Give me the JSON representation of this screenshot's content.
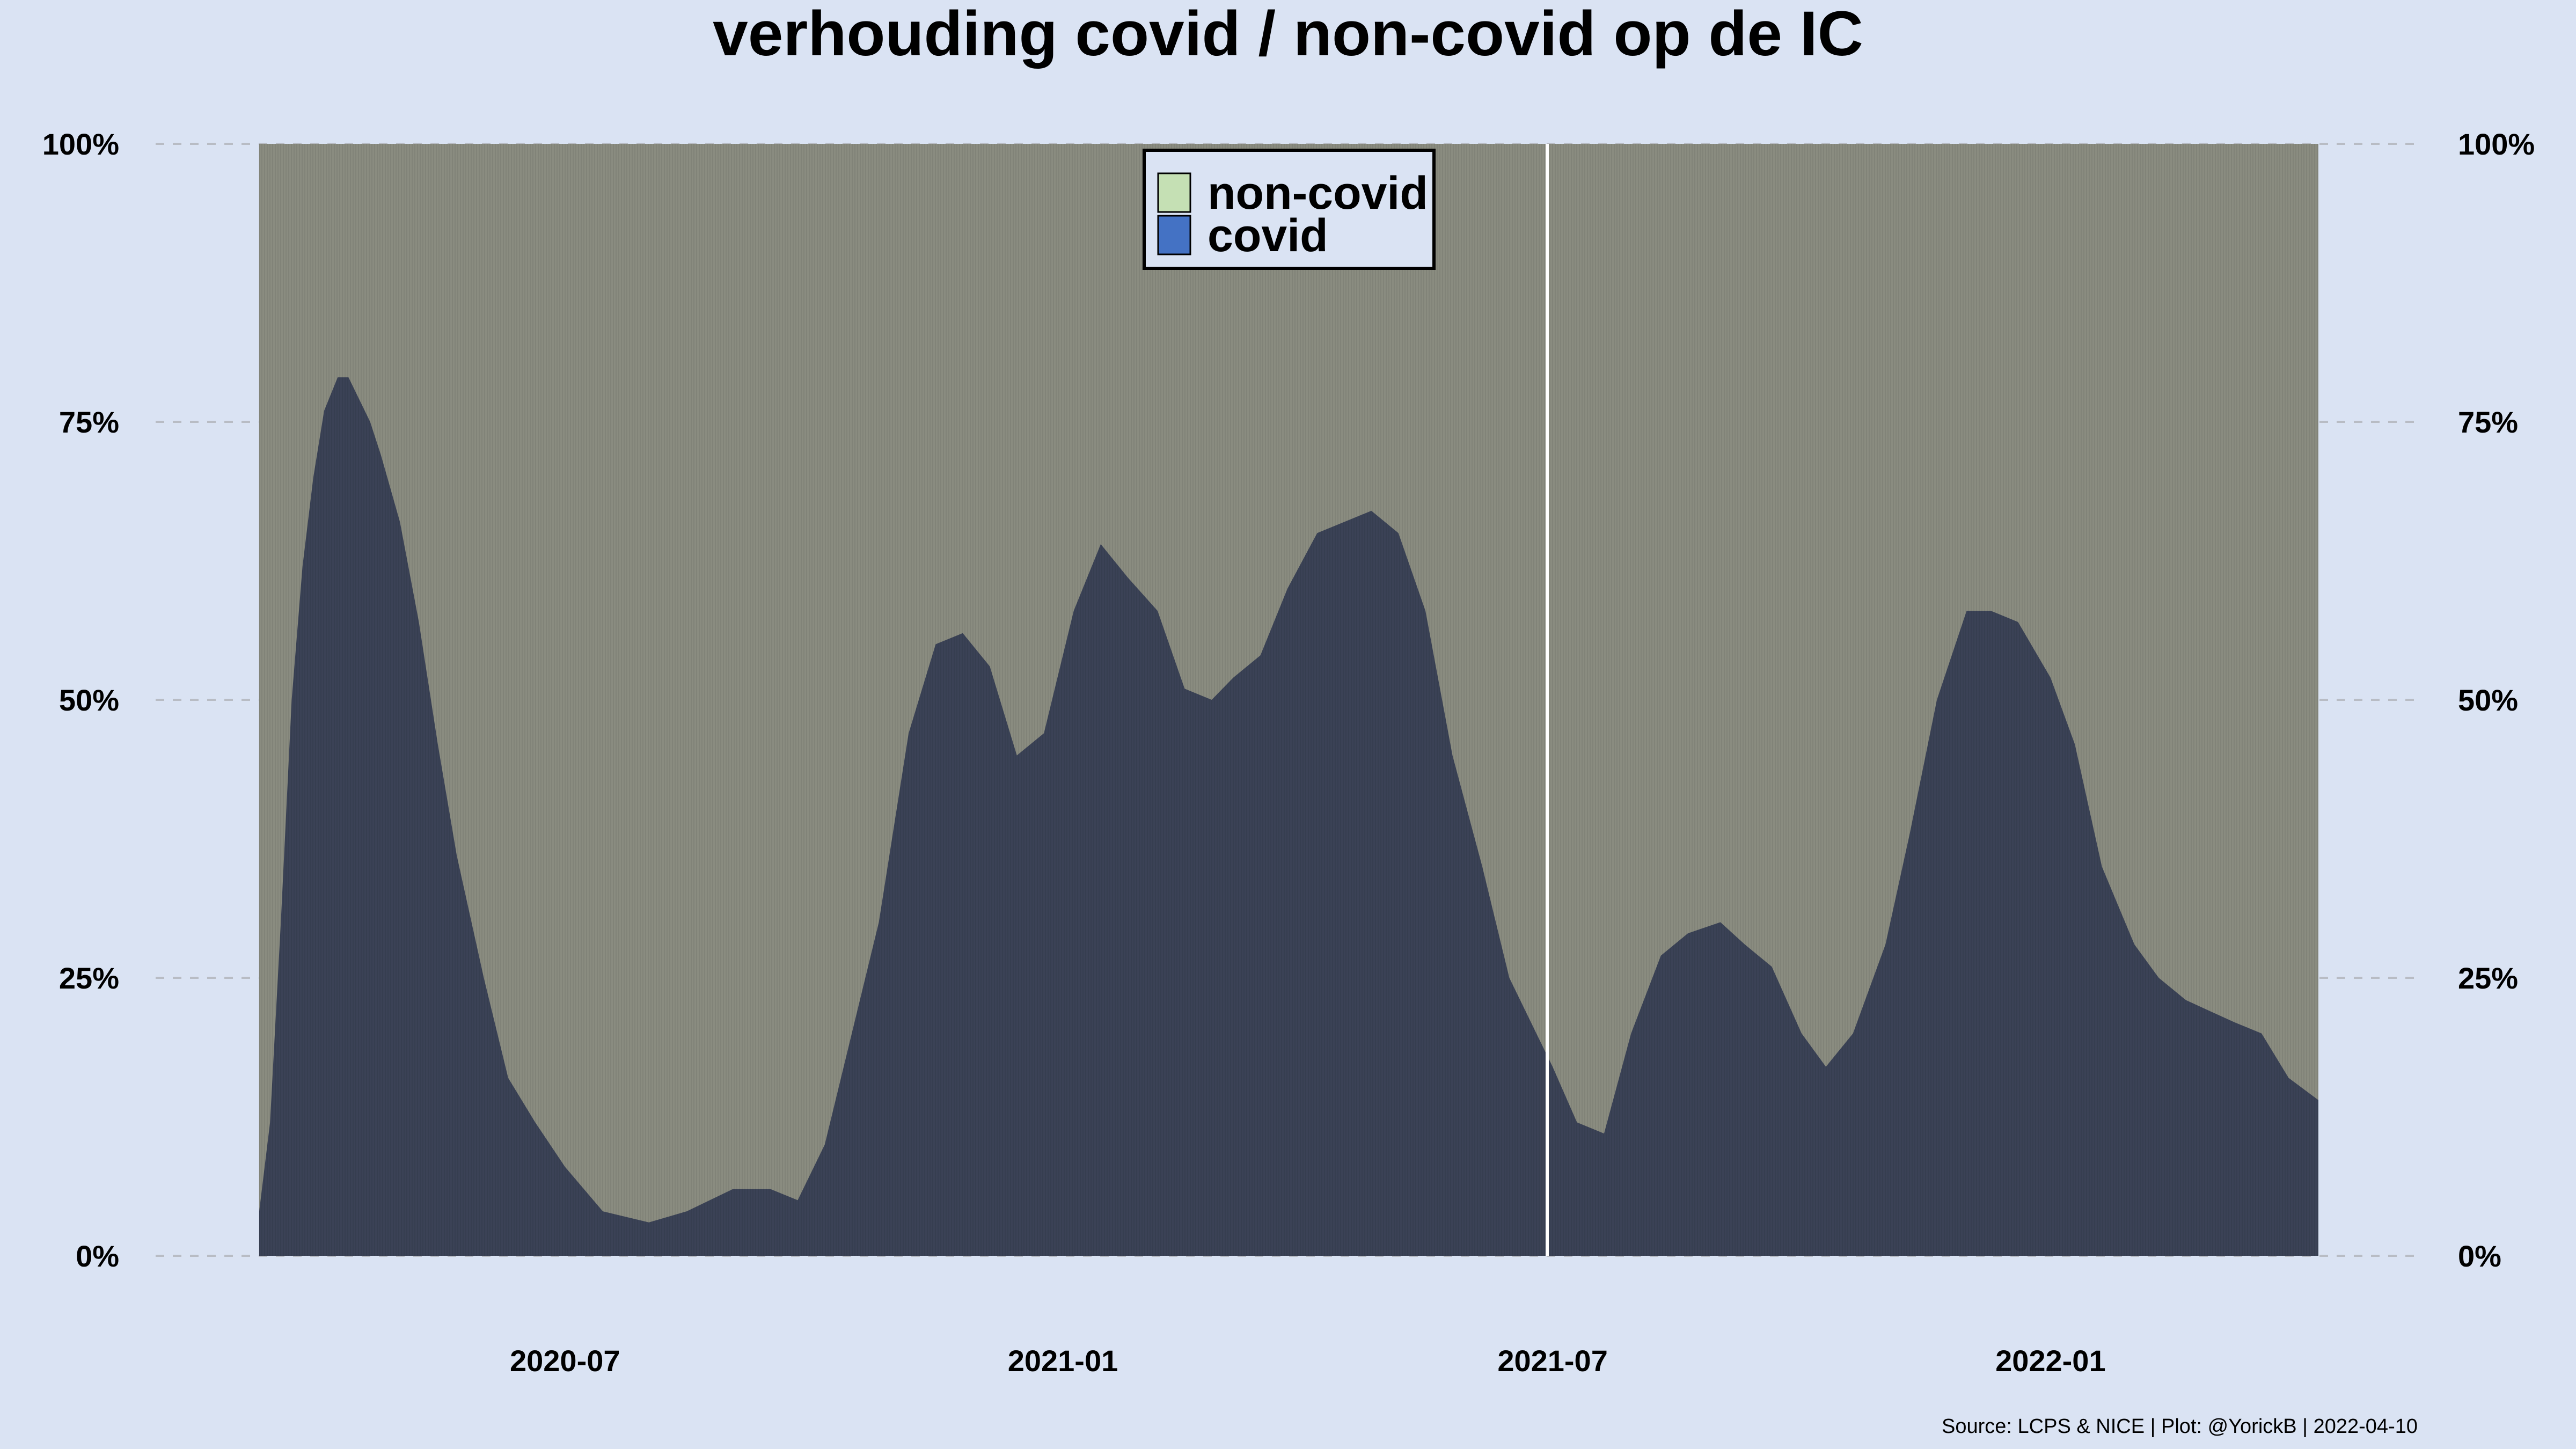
{
  "chart_data": {
    "type": "area",
    "subtype": "100% stacked area (daily bars)",
    "title": "verhouding covid / non-covid op de IC",
    "y_ticks": [
      "0%",
      "25%",
      "50%",
      "75%",
      "100%"
    ],
    "y_tick_values": [
      0,
      25,
      50,
      75,
      100
    ],
    "ylim": [
      0,
      100
    ],
    "y_axis_both_sides": true,
    "x_ticks": [
      "2020-07",
      "2021-01",
      "2021-07",
      "2022-01"
    ],
    "x_tick_dates": [
      "2020-07-01",
      "2021-01-01",
      "2021-07-01",
      "2022-01-01"
    ],
    "x_range": [
      "2020-03-10",
      "2022-04-10"
    ],
    "grid": "horizontal dashed",
    "legend_position": "top-center",
    "source": "Source: LCPS & NICE | Plot: @YorickB |  2022-04-10",
    "colors": {
      "background": "#dae3f3",
      "covid_legend": "#4472c4",
      "noncovid_legend": "#c5e0b4",
      "covid_rendered": "#3b4256",
      "noncovid_rendered": "#8a8c80",
      "gap_line": "#ffffff"
    },
    "series": [
      {
        "name": "non-covid",
        "note": "remainder to 100%"
      },
      {
        "name": "covid",
        "x": [
          "2020-03-10",
          "2020-03-14",
          "2020-03-18",
          "2020-03-22",
          "2020-03-26",
          "2020-03-30",
          "2020-04-03",
          "2020-04-08",
          "2020-04-12",
          "2020-04-16",
          "2020-04-20",
          "2020-04-24",
          "2020-05-01",
          "2020-05-08",
          "2020-05-15",
          "2020-05-22",
          "2020-06-01",
          "2020-06-10",
          "2020-06-20",
          "2020-07-01",
          "2020-07-15",
          "2020-08-01",
          "2020-08-15",
          "2020-09-01",
          "2020-09-15",
          "2020-09-25",
          "2020-10-05",
          "2020-10-15",
          "2020-10-25",
          "2020-11-05",
          "2020-11-15",
          "2020-11-25",
          "2020-12-05",
          "2020-12-15",
          "2020-12-25",
          "2021-01-05",
          "2021-01-15",
          "2021-01-25",
          "2021-02-05",
          "2021-02-15",
          "2021-02-25",
          "2021-03-05",
          "2021-03-15",
          "2021-03-25",
          "2021-04-05",
          "2021-04-15",
          "2021-04-25",
          "2021-05-05",
          "2021-05-15",
          "2021-05-25",
          "2021-06-05",
          "2021-06-15",
          "2021-06-25",
          "2021-07-01",
          "2021-07-10",
          "2021-07-20",
          "2021-07-30",
          "2021-08-10",
          "2021-08-20",
          "2021-09-01",
          "2021-09-10",
          "2021-09-20",
          "2021-10-01",
          "2021-10-10",
          "2021-10-20",
          "2021-11-01",
          "2021-11-10",
          "2021-11-20",
          "2021-12-01",
          "2021-12-10",
          "2021-12-20",
          "2022-01-01",
          "2022-01-10",
          "2022-01-20",
          "2022-02-01",
          "2022-02-10",
          "2022-02-20",
          "2022-03-01",
          "2022-03-10",
          "2022-03-20",
          "2022-03-30",
          "2022-04-10"
        ],
        "values": [
          4,
          12,
          30,
          50,
          62,
          70,
          76,
          79,
          79,
          77,
          75,
          72,
          66,
          57,
          46,
          36,
          25,
          16,
          12,
          8,
          4,
          3,
          4,
          6,
          6,
          5,
          10,
          20,
          30,
          47,
          55,
          56,
          53,
          45,
          47,
          58,
          64,
          61,
          58,
          51,
          50,
          52,
          54,
          60,
          65,
          66,
          67,
          65,
          58,
          45,
          35,
          25,
          20,
          17,
          12,
          11,
          20,
          27,
          29,
          30,
          28,
          26,
          20,
          17,
          20,
          28,
          38,
          50,
          58,
          58,
          57,
          52,
          46,
          35,
          28,
          25,
          23,
          22,
          21,
          20,
          16,
          14
        ]
      }
    ]
  }
}
